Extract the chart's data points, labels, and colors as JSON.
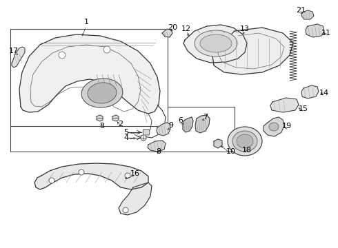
{
  "bg_color": "#ffffff",
  "line_color": "#333333",
  "label_color": "#000000",
  "figsize": [
    4.9,
    3.6
  ],
  "dpi": 100
}
